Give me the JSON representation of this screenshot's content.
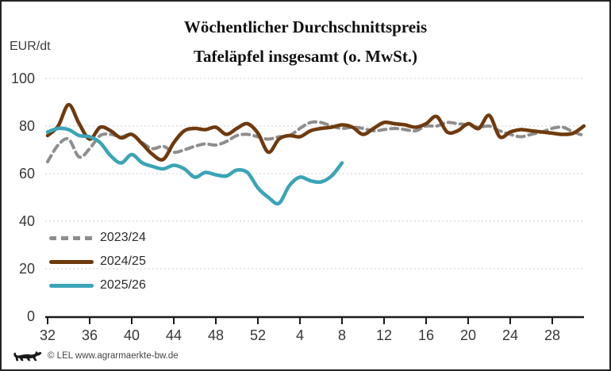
{
  "header": {
    "title_line1": "Wöchentlicher Durchschnittspreis",
    "title_line2": "Tafeläpfel insgesamt (o. MwSt.)",
    "y_axis_unit": "EUR/dt"
  },
  "footer": {
    "copyright": "© LEL www.agrarmaerkte-bw.de"
  },
  "colors": {
    "series_2023_24": "#8e8e8e",
    "series_2024_25": "#6f3a0e",
    "series_2025_26": "#3ba4b7",
    "axis": "#1a1a1a",
    "gridline": "#cdcdcd",
    "frame_border": "#242424"
  },
  "chart_data": {
    "type": "line",
    "title": "Wöchentlicher Durchschnittspreis Tafeläpfel insgesamt (o. MwSt.)",
    "ylabel": "EUR/dt",
    "ylim": [
      0,
      100
    ],
    "y_ticks": [
      0,
      20,
      40,
      60,
      80,
      100
    ],
    "x_tick_labels": [
      "32",
      "36",
      "40",
      "44",
      "48",
      "52",
      "4",
      "8",
      "12",
      "16",
      "20",
      "24",
      "28"
    ],
    "x_weeks": [
      "32",
      "33",
      "34",
      "35",
      "36",
      "37",
      "38",
      "39",
      "40",
      "41",
      "42",
      "43",
      "44",
      "45",
      "46",
      "47",
      "48",
      "49",
      "50",
      "51",
      "52",
      "1",
      "2",
      "3",
      "4",
      "5",
      "6",
      "7",
      "8",
      "9",
      "10",
      "11",
      "12",
      "13",
      "14",
      "15",
      "16",
      "17",
      "18",
      "19",
      "20",
      "21",
      "22",
      "23",
      "24",
      "25",
      "26",
      "27",
      "28",
      "29",
      "30",
      "31"
    ],
    "grid": "horizontal dotted gridlines, x-axis solid with downward ticks",
    "legend_position": "inside plot, middle-left",
    "series": [
      {
        "name": "2023/24",
        "color": "#8e8e8e",
        "style": "dashed",
        "values": [
          65,
          72,
          74.5,
          67,
          70.5,
          76,
          76.5,
          75.5,
          76.5,
          73,
          70.5,
          71.5,
          69,
          70,
          71.5,
          72.5,
          72,
          73.5,
          76,
          76.5,
          75.5,
          74.5,
          75.5,
          76,
          79,
          81.5,
          81.5,
          80,
          79,
          79.5,
          79,
          78,
          78.5,
          79,
          78.5,
          78,
          80,
          80,
          81.5,
          81,
          80.5,
          79.5,
          80,
          78,
          76.5,
          75.5,
          76.5,
          77.5,
          79,
          79.5,
          77.5,
          76
        ]
      },
      {
        "name": "2024/25",
        "color": "#6f3a0e",
        "style": "solid",
        "values": [
          76,
          80,
          89,
          81,
          74.5,
          79.5,
          78,
          75,
          76.5,
          72.5,
          68,
          66,
          73,
          78,
          79,
          78.5,
          79.5,
          76.5,
          79,
          81,
          77,
          69,
          74.5,
          76,
          75.5,
          78,
          79,
          79.5,
          80.5,
          79.5,
          76.5,
          79,
          81.5,
          81,
          80.5,
          79.5,
          81,
          84,
          77.5,
          78,
          81,
          79,
          84.5,
          75.5,
          77.5,
          78.5,
          78,
          77.5,
          77,
          76.5,
          77,
          80
        ]
      },
      {
        "name": "2025/26",
        "color": "#3ba4b7",
        "style": "solid",
        "values": [
          77.5,
          79,
          78.5,
          76,
          75.5,
          73,
          67.5,
          64.5,
          68,
          64.5,
          63,
          62,
          63.5,
          62,
          58.5,
          60.5,
          59.5,
          59,
          61.5,
          60.5,
          54,
          50,
          47.5,
          55,
          58.5,
          57,
          56.5,
          59,
          64.5
        ]
      }
    ]
  }
}
